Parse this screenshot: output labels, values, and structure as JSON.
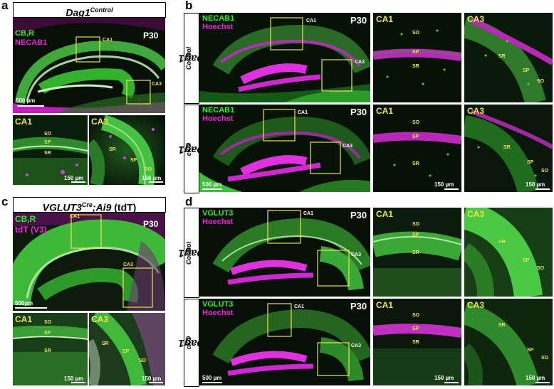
{
  "panel_a": {
    "letter": "a",
    "title_base": "Dag1",
    "title_sup": "Control",
    "legend_1": "CB,R",
    "legend_2": "NECAB1",
    "age": "P30",
    "box_ca1": "CA1",
    "box_ca3": "CA3",
    "scale_main": "500 µm",
    "inset_ca1": {
      "title": "CA1",
      "so": "SO",
      "sp": "SP",
      "sr": "SR",
      "scale": "150 µm"
    },
    "inset_ca3": {
      "title": "CA3",
      "sr": "SR",
      "sp": "SP",
      "so": "SO",
      "scale": "150 µm"
    }
  },
  "panel_b": {
    "letter": "b",
    "row_control": {
      "base": "Dag1",
      "sup": "Control"
    },
    "row_cko": {
      "base": "Dag1",
      "sup": "cKO"
    },
    "ctrl": {
      "legend_1": "NECAB1",
      "legend_2": "Hoechst",
      "age": "P30",
      "box_ca1": "CA1",
      "box_ca3": "CA3"
    },
    "ctrl_ca1": {
      "title": "CA1",
      "so": "SO",
      "sp": "SP",
      "sr": "SR"
    },
    "ctrl_ca3": {
      "title": "CA3",
      "sr": "SR",
      "sp": "SP",
      "so": "SO"
    },
    "cko": {
      "legend_1": "NECAB1",
      "legend_2": "Hoechst",
      "age": "P30",
      "box_ca1": "CA1",
      "box_ca3": "CA3",
      "scale": "500 µm"
    },
    "cko_ca1": {
      "title": "CA1",
      "so": "SO",
      "sp": "SP",
      "sr": "SR",
      "scale": "150 µm"
    },
    "cko_ca3": {
      "title": "CA3",
      "sr": "SR",
      "sp": "SP",
      "so": "SO",
      "scale": "150 µm"
    }
  },
  "panel_c": {
    "letter": "c",
    "title_a": "VGLUT3",
    "title_sup": "Cre",
    "title_b": ";Ai9",
    "title_c": " (tdT)",
    "legend_1": "CB,R",
    "legend_2": "tdT (V3)",
    "age": "P30",
    "box_ca1": "CA1",
    "box_ca3": "CA3",
    "scale_main": "500µm",
    "inset_ca1": {
      "title": "CA1",
      "so": "SO",
      "sp": "SP",
      "sr": "SR",
      "scale": "150 µm"
    },
    "inset_ca3": {
      "title": "CA3",
      "sr": "SR",
      "sp": "SP",
      "so": "SO",
      "scale": "150 µm"
    }
  },
  "panel_d": {
    "letter": "d",
    "row_control": {
      "base": "Dag1",
      "sup": "Control"
    },
    "row_cko": {
      "base": "Dag1",
      "sup": "cKO"
    },
    "ctrl": {
      "legend_1": "VGLUT3",
      "legend_2": "Hoechst",
      "age": "P30",
      "box_ca1": "CA1",
      "box_ca3": "CA3"
    },
    "ctrl_ca1": {
      "title": "CA1",
      "so": "SO",
      "sp": "SP",
      "sr": "SR"
    },
    "ctrl_ca3": {
      "title": "CA3",
      "sr": "SR",
      "sp": "SP",
      "so": "SO"
    },
    "cko": {
      "legend_1": "VGLUT3",
      "legend_2": "Hoechst",
      "age": "P30",
      "box_ca1": "CA1",
      "box_ca3": "CA3",
      "scale": "500 µm"
    },
    "cko_ca1": {
      "title": "CA1",
      "so": "SO",
      "sp": "SP",
      "sr": "SR",
      "scale": "150 µm"
    },
    "cko_ca3": {
      "title": "CA3",
      "sr": "SR",
      "sp": "SP",
      "so": "SO",
      "scale": "150 µm"
    }
  },
  "colors": {
    "green": "#33ee33",
    "magenta": "#ee22dd",
    "yellow": "#f2e34a",
    "background": "#020402"
  }
}
